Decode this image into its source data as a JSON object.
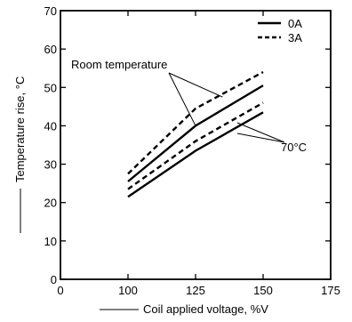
{
  "chart_data": {
    "type": "line",
    "title": "",
    "xlabel": "Coil applied voltage, %V",
    "ylabel": "Temperature rise, °C",
    "xlim": [
      0,
      175
    ],
    "ylim": [
      0,
      70
    ],
    "x_axis_mode": "0 then 100-175 (axis break)",
    "x_ticks": [
      {
        "value": 0,
        "label": "0"
      },
      {
        "value": 100,
        "label": "100"
      },
      {
        "value": 125,
        "label": "125"
      },
      {
        "value": 150,
        "label": "150"
      },
      {
        "value": 175,
        "label": "175"
      }
    ],
    "y_ticks": [
      {
        "value": 0,
        "label": "0"
      },
      {
        "value": 10,
        "label": "10"
      },
      {
        "value": 20,
        "label": "20"
      },
      {
        "value": 30,
        "label": "30"
      },
      {
        "value": 40,
        "label": "40"
      },
      {
        "value": 50,
        "label": "50"
      },
      {
        "value": 60,
        "label": "60"
      },
      {
        "value": 70,
        "label": "70"
      }
    ],
    "legend": {
      "placement": "top-right",
      "entries": [
        {
          "label": "0A",
          "style": "solid"
        },
        {
          "label": "3A",
          "style": "dashed"
        }
      ]
    },
    "series": [
      {
        "current": "0A",
        "condition": "Room temperature",
        "style": "solid",
        "x": [
          100,
          125,
          150
        ],
        "y": [
          25.5,
          40,
          50.5
        ]
      },
      {
        "current": "3A",
        "condition": "Room temperature",
        "style": "dashed",
        "x": [
          100,
          125,
          150
        ],
        "y": [
          27.5,
          44.5,
          54
        ]
      },
      {
        "current": "0A",
        "condition": "70°C",
        "style": "solid",
        "x": [
          100,
          125,
          150
        ],
        "y": [
          21.5,
          33.5,
          43.5
        ]
      },
      {
        "current": "3A",
        "condition": "70°C",
        "style": "dashed",
        "x": [
          100,
          125,
          150
        ],
        "y": [
          23.5,
          36,
          46
        ]
      }
    ],
    "annotations": [
      {
        "text": "Room temperature",
        "points_to": [
          {
            "x": 125,
            "y": 40
          },
          {
            "x": 135,
            "y": 47.5
          }
        ]
      },
      {
        "text": "70°C",
        "points_to": [
          {
            "x": 142,
            "y": 42
          },
          {
            "x": 142,
            "y": 40
          }
        ]
      }
    ],
    "grid": false
  }
}
